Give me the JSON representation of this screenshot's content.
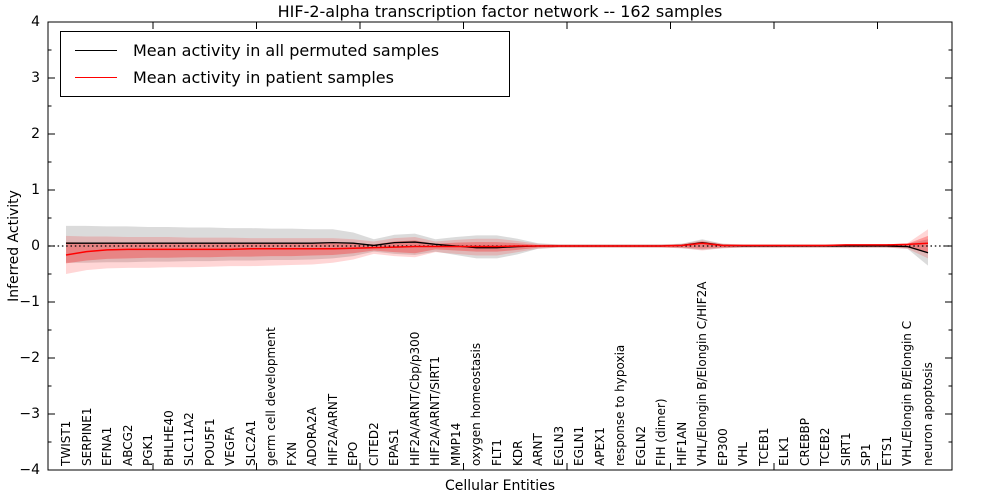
{
  "header": {
    "title": "HIF-2-alpha transcription factor network -- 162 samples"
  },
  "chart_data": {
    "type": "line",
    "title": "HIF-2-alpha transcription factor network -- 162 samples",
    "xlabel": "Cellular Entities",
    "ylabel": "Inferred Activity",
    "ylim": [
      -4,
      4
    ],
    "yticks": [
      4,
      3,
      2,
      1,
      0,
      -1,
      -2,
      -3,
      -4
    ],
    "grid": false,
    "legend_position": "upper left",
    "zero_line_style": "dotted",
    "categories": [
      "TWIST1",
      "SERPINE1",
      "EFNA1",
      "ABCG2",
      "PGK1",
      "BHLHE40",
      "SLC11A2",
      "POU5F1",
      "VEGFA",
      "SLC2A1",
      "germ cell development",
      "FXN",
      "ADORA2A",
      "HIF2A/ARNT",
      "EPO",
      "CITED2",
      "EPAS1",
      "HIF2A/ARNT/Cbp/p300",
      "HIF2A/ARNT/SIRT1",
      "MMP14",
      "oxygen homeostasis",
      "FLT1",
      "KDR",
      "ARNT",
      "EGLN3",
      "EGLN1",
      "APEX1",
      "response to hypoxia",
      "EGLN2",
      "FIH (dimer)",
      "HIF1AN",
      "VHL/Elongin B/Elongin C/HIF2A",
      "EP300",
      "VHL",
      "TCEB1",
      "ELK1",
      "CREBBP",
      "TCEB2",
      "SIRT1",
      "SP1",
      "ETS1",
      "VHL/Elongin B/Elongin C",
      "neuron apoptosis"
    ],
    "series": [
      {
        "name": "Mean activity in all permuted samples",
        "color": "#000000",
        "band_fill": "rgba(0,0,0,0.14)",
        "values": [
          0.05,
          0.05,
          0.05,
          0.05,
          0.05,
          0.05,
          0.05,
          0.05,
          0.05,
          0.05,
          0.05,
          0.05,
          0.05,
          0.06,
          0.05,
          0.01,
          0.06,
          0.07,
          0.03,
          0.0,
          -0.03,
          -0.03,
          -0.01,
          0.0,
          0.0,
          0.0,
          0.0,
          0.0,
          0.0,
          0.0,
          0.01,
          0.06,
          0.01,
          0.0,
          0.0,
          0.0,
          0.0,
          0.0,
          0.0,
          0.0,
          0.0,
          -0.01,
          -0.12
        ],
        "band_upper": [
          0.36,
          0.36,
          0.35,
          0.35,
          0.34,
          0.34,
          0.33,
          0.33,
          0.32,
          0.32,
          0.31,
          0.31,
          0.3,
          0.3,
          0.24,
          0.12,
          0.2,
          0.22,
          0.12,
          0.16,
          0.19,
          0.19,
          0.13,
          0.05,
          0.03,
          0.03,
          0.03,
          0.03,
          0.03,
          0.03,
          0.04,
          0.12,
          0.04,
          0.03,
          0.03,
          0.03,
          0.03,
          0.03,
          0.03,
          0.03,
          0.03,
          0.04,
          0.12
        ],
        "band_lower": [
          -0.3,
          -0.3,
          -0.29,
          -0.29,
          -0.28,
          -0.28,
          -0.27,
          -0.27,
          -0.26,
          -0.26,
          -0.25,
          -0.25,
          -0.24,
          -0.22,
          -0.18,
          -0.1,
          -0.14,
          -0.16,
          -0.1,
          -0.16,
          -0.22,
          -0.22,
          -0.15,
          -0.05,
          -0.03,
          -0.03,
          -0.03,
          -0.03,
          -0.03,
          -0.03,
          -0.04,
          -0.07,
          -0.04,
          -0.03,
          -0.03,
          -0.03,
          -0.03,
          -0.03,
          -0.03,
          -0.03,
          -0.03,
          -0.05,
          -0.35
        ]
      },
      {
        "name": "Mean activity in patient samples",
        "color": "#ff0000",
        "outer_band_fill": "rgba(255,0,0,0.16)",
        "inner_band_fill": "rgba(255,0,0,0.28)",
        "values": [
          -0.16,
          -0.1,
          -0.07,
          -0.06,
          -0.06,
          -0.06,
          -0.06,
          -0.06,
          -0.06,
          -0.05,
          -0.05,
          -0.05,
          -0.05,
          -0.05,
          -0.04,
          -0.03,
          -0.02,
          -0.01,
          -0.01,
          -0.01,
          -0.01,
          -0.01,
          0.0,
          0.0,
          0.0,
          0.0,
          0.0,
          0.0,
          0.0,
          0.0,
          0.01,
          0.05,
          0.01,
          0.01,
          0.01,
          0.01,
          0.01,
          0.01,
          0.02,
          0.02,
          0.02,
          0.03,
          0.05
        ],
        "outer_band_upper": [
          0.18,
          0.17,
          0.17,
          0.16,
          0.16,
          0.16,
          0.15,
          0.15,
          0.15,
          0.14,
          0.14,
          0.14,
          0.14,
          0.14,
          0.12,
          0.08,
          0.14,
          0.16,
          0.08,
          0.11,
          0.13,
          0.13,
          0.09,
          0.04,
          0.03,
          0.03,
          0.03,
          0.03,
          0.03,
          0.03,
          0.04,
          0.1,
          0.04,
          0.03,
          0.03,
          0.03,
          0.03,
          0.03,
          0.03,
          0.03,
          0.03,
          0.05,
          0.3
        ],
        "outer_band_lower": [
          -0.5,
          -0.43,
          -0.4,
          -0.39,
          -0.39,
          -0.38,
          -0.38,
          -0.37,
          -0.36,
          -0.36,
          -0.35,
          -0.34,
          -0.33,
          -0.3,
          -0.24,
          -0.14,
          -0.18,
          -0.2,
          -0.11,
          -0.14,
          -0.17,
          -0.17,
          -0.11,
          -0.05,
          -0.03,
          -0.03,
          -0.03,
          -0.03,
          -0.03,
          -0.03,
          -0.04,
          -0.08,
          -0.04,
          -0.03,
          -0.03,
          -0.03,
          -0.03,
          -0.03,
          -0.03,
          -0.03,
          -0.03,
          -0.05,
          -0.22
        ],
        "inner_band_upper": [
          0.07,
          0.06,
          0.06,
          0.05,
          0.05,
          0.05,
          0.05,
          0.05,
          0.05,
          0.05,
          0.05,
          0.05,
          0.05,
          0.05,
          0.05,
          0.03,
          0.08,
          0.1,
          0.04,
          0.06,
          0.07,
          0.07,
          0.05,
          0.02,
          0.02,
          0.02,
          0.02,
          0.02,
          0.02,
          0.02,
          0.03,
          0.08,
          0.03,
          0.02,
          0.02,
          0.02,
          0.02,
          0.02,
          0.02,
          0.02,
          0.02,
          0.04,
          0.18
        ],
        "inner_band_lower": [
          -0.31,
          -0.26,
          -0.23,
          -0.22,
          -0.21,
          -0.21,
          -0.2,
          -0.2,
          -0.19,
          -0.19,
          -0.18,
          -0.18,
          -0.17,
          -0.16,
          -0.13,
          -0.08,
          -0.11,
          -0.13,
          -0.06,
          -0.08,
          -0.1,
          -0.1,
          -0.07,
          -0.03,
          -0.02,
          -0.02,
          -0.02,
          -0.02,
          -0.02,
          -0.02,
          -0.03,
          -0.05,
          -0.03,
          -0.02,
          -0.02,
          -0.02,
          -0.02,
          -0.02,
          -0.02,
          -0.02,
          -0.02,
          -0.03,
          -0.13
        ]
      }
    ]
  }
}
